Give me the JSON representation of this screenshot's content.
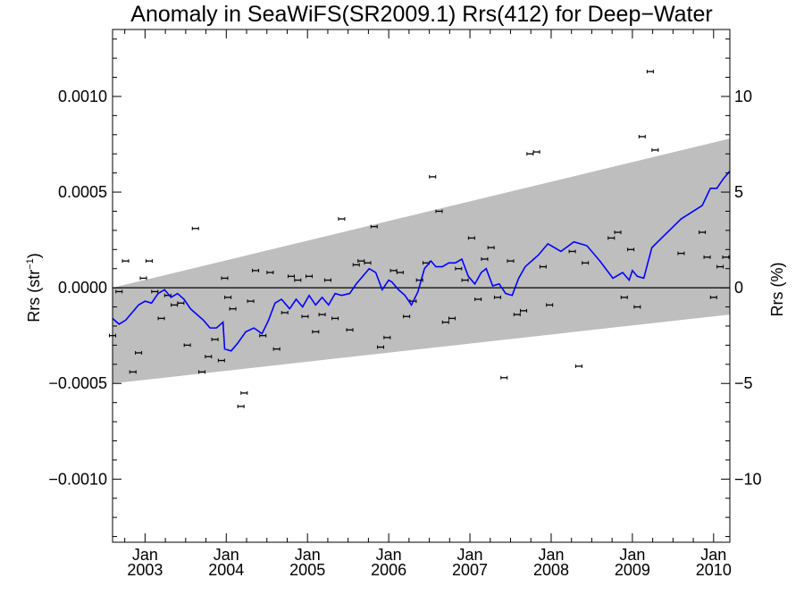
{
  "chart_data": {
    "type": "scatter",
    "title": "Anomaly in SeaWiFS(SR2009.1) Rrs(412) for Deep−Water",
    "ylabel_base": "Rrs (str",
    "ylabel_sup": "−1",
    "ylabel_close": ")",
    "y2label": "Rrs (%)",
    "xlim": [
      2002.6,
      2010.2
    ],
    "ylim": [
      -0.00133,
      0.00135
    ],
    "y2lim": [
      -13.3,
      13.5
    ],
    "grid": false,
    "colors": {
      "series": "#0000ff",
      "envelope": "#bebebe",
      "points": "#000000",
      "zero_line": "#000000"
    },
    "y_ticks": [
      {
        "value": -0.001,
        "label": "−0.0010"
      },
      {
        "value": -0.0005,
        "label": "−0.0005"
      },
      {
        "value": 0.0,
        "label": "0.0000"
      },
      {
        "value": 0.0005,
        "label": "0.0005"
      },
      {
        "value": 0.001,
        "label": "0.0010"
      }
    ],
    "y2_ticks": [
      {
        "value": -10,
        "label": "−10"
      },
      {
        "value": -5,
        "label": "−5"
      },
      {
        "value": 0,
        "label": "0"
      },
      {
        "value": 5,
        "label": "5"
      },
      {
        "value": 10,
        "label": "10"
      }
    ],
    "x_ticks": [
      {
        "value": 2003.0,
        "month": "Jan",
        "year": "2003"
      },
      {
        "value": 2004.0,
        "month": "Jan",
        "year": "2004"
      },
      {
        "value": 2005.0,
        "month": "Jan",
        "year": "2005"
      },
      {
        "value": 2006.0,
        "month": "Jan",
        "year": "2006"
      },
      {
        "value": 2007.0,
        "month": "Jan",
        "year": "2007"
      },
      {
        "value": 2008.0,
        "month": "Jan",
        "year": "2008"
      },
      {
        "value": 2009.0,
        "month": "Jan",
        "year": "2009"
      },
      {
        "value": 2010.0,
        "month": "Jan",
        "year": "2010"
      }
    ],
    "envelope": {
      "upper": [
        [
          2002.6,
          0.0
        ],
        [
          2010.2,
          0.00078
        ]
      ],
      "lower": [
        [
          2002.6,
          -0.0005
        ],
        [
          2010.2,
          -0.00014
        ]
      ]
    },
    "zero_line": 0.0,
    "line_series": {
      "x": [
        2002.6,
        2002.68,
        2002.76,
        2002.84,
        2002.92,
        2003.0,
        2003.08,
        2003.16,
        2003.24,
        2003.32,
        2003.4,
        2003.48,
        2003.56,
        2003.64,
        2003.72,
        2003.8,
        2003.88,
        2003.96,
        2003.98,
        2004.06,
        2004.14,
        2004.24,
        2004.34,
        2004.44,
        2004.52,
        2004.6,
        2004.68,
        2004.78,
        2004.86,
        2004.94,
        2005.02,
        2005.1,
        2005.18,
        2005.26,
        2005.34,
        2005.42,
        2005.52,
        2005.6,
        2005.68,
        2005.76,
        2005.84,
        2005.92,
        2006.0,
        2006.04,
        2006.12,
        2006.2,
        2006.28,
        2006.36,
        2006.44,
        2006.52,
        2006.58,
        2006.66,
        2006.74,
        2006.82,
        2006.9,
        2006.98,
        2007.06,
        2007.14,
        2007.2,
        2007.28,
        2007.36,
        2007.44,
        2007.52,
        2007.6,
        2007.68,
        2007.76,
        2007.84,
        2007.96,
        2008.12,
        2008.28,
        2008.36,
        2008.44,
        2008.6,
        2008.76,
        2008.88,
        2008.96,
        2009.0,
        2009.06,
        2009.14,
        2009.24,
        2009.36,
        2009.6,
        2009.86,
        2009.96,
        2010.04,
        2010.12,
        2010.2
      ],
      "y": [
        -0.00016,
        -0.00019,
        -0.00017,
        -0.00013,
        -9e-05,
        -7e-05,
        -8e-05,
        -3e-05,
        -1e-05,
        -5e-05,
        -3e-05,
        -6e-05,
        -0.00011,
        -0.00014,
        -0.00017,
        -0.00021,
        -0.00021,
        -0.00018,
        -0.00032,
        -0.00033,
        -0.00029,
        -0.00023,
        -0.00021,
        -0.00024,
        -0.00017,
        -8e-05,
        -6e-05,
        -0.00011,
        -6e-05,
        -0.0001,
        -4e-05,
        -9e-05,
        -5e-05,
        -9e-05,
        -3e-05,
        -4e-05,
        -3e-05,
        2e-05,
        6e-05,
        0.0001,
        8e-05,
        -1e-05,
        4e-05,
        3e-05,
        -1e-05,
        -4e-05,
        -9e-05,
        -2e-05,
        0.0001,
        0.00014,
        0.00011,
        0.00011,
        0.00013,
        0.00013,
        0.00015,
        6e-05,
        2e-05,
        8e-05,
        0.0001,
        1e-05,
        2e-05,
        -3e-05,
        -4e-05,
        5e-05,
        0.00011,
        0.00014,
        0.00017,
        0.00023,
        0.00019,
        0.00024,
        0.00023,
        0.00022,
        0.00014,
        5e-05,
        8e-05,
        4e-05,
        9e-05,
        6e-05,
        5e-05,
        0.00021,
        0.00026,
        0.00036,
        0.00043,
        0.00052,
        0.00052,
        0.00057,
        0.00061
      ]
    },
    "points": {
      "x": [
        2002.6,
        2002.68,
        2002.76,
        2002.85,
        2002.92,
        2002.98,
        2003.05,
        2003.12,
        2003.2,
        2003.28,
        2003.36,
        2003.44,
        2003.52,
        2003.62,
        2003.7,
        2003.78,
        2003.86,
        2003.94,
        2003.98,
        2004.02,
        2004.08,
        2004.18,
        2004.22,
        2004.3,
        2004.36,
        2004.45,
        2004.54,
        2004.62,
        2004.72,
        2004.8,
        2004.88,
        2004.97,
        2005.02,
        2005.1,
        2005.18,
        2005.25,
        2005.34,
        2005.42,
        2005.52,
        2005.6,
        2005.66,
        2005.74,
        2005.82,
        2005.9,
        2005.98,
        2006.06,
        2006.14,
        2006.22,
        2006.3,
        2006.38,
        2006.46,
        2006.54,
        2006.62,
        2006.7,
        2006.78,
        2006.86,
        2006.94,
        2007.02,
        2007.1,
        2007.18,
        2007.26,
        2007.34,
        2007.42,
        2007.5,
        2007.58,
        2007.66,
        2007.74,
        2007.82,
        2007.9,
        2007.98,
        2008.26,
        2008.34,
        2008.42,
        2008.74,
        2008.82,
        2008.9,
        2008.98,
        2009.06,
        2009.12,
        2009.22,
        2009.28,
        2009.6,
        2009.86,
        2009.92,
        2010.0,
        2010.08,
        2010.15
      ],
      "y": [
        -0.00025,
        -2e-05,
        0.00014,
        -0.00044,
        -0.00034,
        5e-05,
        0.00014,
        -2e-05,
        -0.00016,
        -4e-05,
        -9e-05,
        -8e-05,
        -0.0003,
        0.00031,
        -0.00044,
        -0.00036,
        -0.00027,
        -0.00038,
        5e-05,
        -5e-05,
        -0.00011,
        -0.00062,
        -0.00055,
        -7e-05,
        9e-05,
        -0.00025,
        8e-05,
        -0.00032,
        -0.00013,
        6e-05,
        4e-05,
        -0.00015,
        6e-05,
        -0.00023,
        -0.00014,
        4e-05,
        -0.00016,
        0.00036,
        -0.00022,
        0.00012,
        0.00014,
        0.00013,
        0.00032,
        -0.00031,
        -0.00026,
        9e-05,
        8e-05,
        -0.00015,
        -7e-05,
        4e-05,
        0.00013,
        0.00058,
        0.0004,
        -0.00018,
        -0.00016,
        0.0001,
        4e-05,
        0.00026,
        -6e-05,
        0.00015,
        0.00021,
        -5e-05,
        -0.00047,
        0.00014,
        -0.00014,
        -0.00012,
        0.0007,
        0.00071,
        0.00011,
        -9e-05,
        0.00019,
        -0.00041,
        0.00013,
        0.00026,
        0.00029,
        -5e-05,
        0.0002,
        -0.0001,
        0.00079,
        0.00113,
        0.00072,
        0.00018,
        0.00029,
        0.00016,
        -5e-05,
        0.00011,
        0.00016
      ]
    }
  }
}
